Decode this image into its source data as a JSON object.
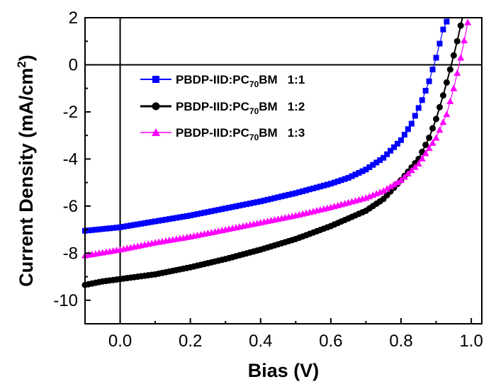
{
  "chart_data": {
    "type": "line",
    "xlabel": "Bias (V)",
    "ylabel_main": "Current Density (mA/cm",
    "ylabel_sup": "2",
    "ylabel_close": ")",
    "xlim": [
      -0.1,
      1.03
    ],
    "ylim": [
      -11,
      2
    ],
    "x_ticks": [
      "0.0",
      "0.2",
      "0.4",
      "0.6",
      "0.8",
      "1.0"
    ],
    "y_ticks": [
      "2",
      "0",
      "-2",
      "-4",
      "-6",
      "-8",
      "-10"
    ],
    "legend_position": "upper-left",
    "series": [
      {
        "name_prefix": "PBDP-IID:PC",
        "name_sub": "70",
        "name_suffix": "BM",
        "ratio": "1:1",
        "color": "#0000ff",
        "marker": "square",
        "points": [
          [
            -0.1,
            -7.05
          ],
          [
            0.0,
            -6.9
          ],
          [
            0.1,
            -6.65
          ],
          [
            0.2,
            -6.4
          ],
          [
            0.3,
            -6.1
          ],
          [
            0.4,
            -5.8
          ],
          [
            0.5,
            -5.45
          ],
          [
            0.6,
            -5.05
          ],
          [
            0.65,
            -4.8
          ],
          [
            0.7,
            -4.45
          ],
          [
            0.75,
            -3.95
          ],
          [
            0.8,
            -3.2
          ],
          [
            0.83,
            -2.5
          ],
          [
            0.86,
            -1.5
          ],
          [
            0.88,
            -0.7
          ],
          [
            0.9,
            0.3
          ],
          [
            0.92,
            1.5
          ],
          [
            0.935,
            2.0
          ]
        ]
      },
      {
        "name_prefix": "PBDP-IID:PC",
        "name_sub": "70",
        "name_suffix": "BM",
        "ratio": "1:2",
        "color": "#000000",
        "marker": "circle",
        "points": [
          [
            -0.1,
            -9.35
          ],
          [
            -0.05,
            -9.2
          ],
          [
            0.0,
            -9.1
          ],
          [
            0.1,
            -8.9
          ],
          [
            0.2,
            -8.6
          ],
          [
            0.3,
            -8.25
          ],
          [
            0.4,
            -7.85
          ],
          [
            0.5,
            -7.4
          ],
          [
            0.6,
            -6.85
          ],
          [
            0.7,
            -6.2
          ],
          [
            0.75,
            -5.7
          ],
          [
            0.8,
            -4.9
          ],
          [
            0.85,
            -4.0
          ],
          [
            0.88,
            -3.1
          ],
          [
            0.9,
            -2.3
          ],
          [
            0.92,
            -1.3
          ],
          [
            0.94,
            -0.2
          ],
          [
            0.96,
            1.0
          ],
          [
            0.975,
            2.0
          ]
        ]
      },
      {
        "name_prefix": "PBDP-IID:PC",
        "name_sub": "70",
        "name_suffix": "BM",
        "ratio": "1:3",
        "color": "#ff00ff",
        "marker": "triangle",
        "points": [
          [
            -0.1,
            -8.1
          ],
          [
            0.0,
            -7.85
          ],
          [
            0.1,
            -7.55
          ],
          [
            0.2,
            -7.3
          ],
          [
            0.3,
            -7.0
          ],
          [
            0.4,
            -6.7
          ],
          [
            0.5,
            -6.4
          ],
          [
            0.6,
            -6.05
          ],
          [
            0.7,
            -5.65
          ],
          [
            0.75,
            -5.35
          ],
          [
            0.8,
            -4.9
          ],
          [
            0.85,
            -4.2
          ],
          [
            0.9,
            -3.1
          ],
          [
            0.93,
            -2.1
          ],
          [
            0.95,
            -1.0
          ],
          [
            0.97,
            0.3
          ],
          [
            0.985,
            1.4
          ],
          [
            0.99,
            1.8
          ]
        ]
      }
    ]
  }
}
